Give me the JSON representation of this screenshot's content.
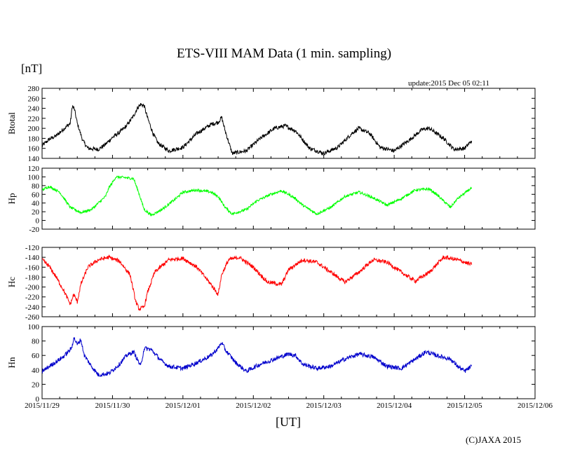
{
  "page": {
    "title": "ETS-VIII MAM Data (1 min. sampling)",
    "unit_label": "[nT]",
    "update_text": "update:2015 Dec 05 02:11",
    "xlabel": "[UT]",
    "copyright": "(C)JAXA 2015"
  },
  "chart_data": [
    {
      "type": "line",
      "ylabel": "Btotal",
      "ylim": [
        140,
        280
      ],
      "yticks": [
        140,
        160,
        180,
        200,
        220,
        240,
        260,
        280
      ],
      "xlim": [
        0,
        7
      ],
      "xticks": [
        "2015/11/29",
        "2015/11/30",
        "2015/12/01",
        "2015/12/02",
        "2015/12/03",
        "2015/12/04",
        "2015/12/05",
        "2015/12/06"
      ],
      "show_xtick_labels": false,
      "series": [
        {
          "color": "#000000",
          "noise": 4,
          "x": [
            0,
            0.1,
            0.2,
            0.3,
            0.4,
            0.43,
            0.46,
            0.5,
            0.58,
            0.65,
            0.8,
            0.9,
            1.0,
            1.1,
            1.2,
            1.3,
            1.35,
            1.4,
            1.45,
            1.5,
            1.58,
            1.65,
            1.8,
            2.0,
            2.2,
            2.4,
            2.5,
            2.55,
            2.6,
            2.7,
            2.9,
            3.1,
            3.3,
            3.45,
            3.6,
            3.8,
            4.0,
            4.2,
            4.4,
            4.5,
            4.65,
            4.8,
            5.0,
            5.2,
            5.4,
            5.5,
            5.7,
            5.85,
            6.0,
            6.1
          ],
          "y": [
            165,
            178,
            185,
            198,
            210,
            245,
            238,
            210,
            175,
            160,
            158,
            168,
            182,
            192,
            205,
            225,
            240,
            248,
            245,
            220,
            188,
            170,
            155,
            162,
            190,
            208,
            212,
            222,
            195,
            150,
            155,
            180,
            200,
            205,
            195,
            160,
            150,
            162,
            190,
            200,
            190,
            162,
            155,
            175,
            198,
            200,
            180,
            158,
            160,
            175
          ]
        }
      ]
    },
    {
      "type": "line",
      "ylabel": "Hp",
      "ylim": [
        -20,
        120
      ],
      "yticks": [
        -20,
        0,
        20,
        40,
        60,
        80,
        100,
        120
      ],
      "xlim": [
        0,
        7
      ],
      "xticks": [
        "2015/11/29",
        "2015/11/30",
        "2015/12/01",
        "2015/12/02",
        "2015/12/03",
        "2015/12/04",
        "2015/12/05",
        "2015/12/06"
      ],
      "show_xtick_labels": false,
      "series": [
        {
          "color": "#00ff00",
          "noise": 3,
          "x": [
            0,
            0.1,
            0.25,
            0.4,
            0.55,
            0.7,
            0.9,
            0.95,
            1.05,
            1.2,
            1.3,
            1.38,
            1.45,
            1.55,
            1.7,
            1.9,
            2.0,
            2.2,
            2.4,
            2.5,
            2.6,
            2.7,
            2.9,
            3.05,
            3.25,
            3.4,
            3.5,
            3.6,
            3.7,
            3.9,
            4.1,
            4.3,
            4.5,
            4.7,
            4.9,
            5.1,
            5.3,
            5.5,
            5.6,
            5.7,
            5.8,
            5.9,
            6.1
          ],
          "y": [
            70,
            78,
            65,
            30,
            18,
            25,
            55,
            75,
            100,
            98,
            96,
            60,
            25,
            12,
            25,
            50,
            65,
            70,
            65,
            55,
            30,
            15,
            25,
            45,
            60,
            68,
            60,
            50,
            35,
            15,
            30,
            55,
            65,
            52,
            35,
            50,
            70,
            72,
            60,
            45,
            30,
            50,
            75
          ]
        }
      ]
    },
    {
      "type": "line",
      "ylabel": "Hc",
      "ylim": [
        -260,
        -120
      ],
      "yticks": [
        -260,
        -240,
        -220,
        -200,
        -180,
        -160,
        -140,
        -120
      ],
      "xlim": [
        0,
        7
      ],
      "xticks": [
        "2015/11/29",
        "2015/11/30",
        "2015/12/01",
        "2015/12/02",
        "2015/12/03",
        "2015/12/04",
        "2015/12/05",
        "2015/12/06"
      ],
      "show_xtick_labels": false,
      "series": [
        {
          "color": "#ff0000",
          "noise": 4,
          "x": [
            0,
            0.1,
            0.2,
            0.3,
            0.4,
            0.45,
            0.5,
            0.55,
            0.65,
            0.8,
            0.95,
            1.1,
            1.25,
            1.33,
            1.38,
            1.45,
            1.5,
            1.6,
            1.8,
            2.0,
            2.2,
            2.4,
            2.5,
            2.55,
            2.65,
            2.8,
            3.0,
            3.2,
            3.4,
            3.5,
            3.7,
            3.9,
            4.1,
            4.3,
            4.5,
            4.7,
            4.9,
            5.1,
            5.3,
            5.5,
            5.7,
            5.9,
            6.1
          ],
          "y": [
            -145,
            -158,
            -180,
            -205,
            -235,
            -215,
            -230,
            -195,
            -160,
            -145,
            -140,
            -148,
            -175,
            -230,
            -245,
            -240,
            -210,
            -170,
            -145,
            -142,
            -160,
            -195,
            -215,
            -175,
            -145,
            -140,
            -160,
            -190,
            -195,
            -165,
            -145,
            -150,
            -170,
            -190,
            -170,
            -145,
            -150,
            -170,
            -188,
            -170,
            -140,
            -145,
            -155
          ]
        }
      ]
    },
    {
      "type": "line",
      "ylabel": "Hn",
      "ylim": [
        0,
        100
      ],
      "yticks": [
        0,
        20,
        40,
        60,
        80,
        100
      ],
      "xlim": [
        0,
        7
      ],
      "xticks": [
        "2015/11/29",
        "2015/11/30",
        "2015/12/01",
        "2015/12/02",
        "2015/12/03",
        "2015/12/04",
        "2015/12/05",
        "2015/12/06"
      ],
      "show_xtick_labels": true,
      "series": [
        {
          "color": "#0000cc",
          "noise": 3,
          "x": [
            0,
            0.15,
            0.3,
            0.42,
            0.45,
            0.5,
            0.55,
            0.6,
            0.7,
            0.8,
            0.95,
            1.1,
            1.2,
            1.3,
            1.35,
            1.4,
            1.45,
            1.55,
            1.7,
            1.8,
            2.0,
            2.2,
            2.4,
            2.5,
            2.55,
            2.6,
            2.75,
            2.9,
            3.1,
            3.3,
            3.5,
            3.6,
            3.7,
            3.9,
            4.1,
            4.3,
            4.5,
            4.7,
            4.9,
            5.1,
            5.3,
            5.45,
            5.6,
            5.8,
            5.9,
            6.0,
            6.1
          ],
          "y": [
            38,
            48,
            58,
            70,
            85,
            75,
            82,
            60,
            45,
            33,
            35,
            48,
            60,
            65,
            55,
            45,
            70,
            68,
            52,
            45,
            42,
            50,
            60,
            70,
            78,
            68,
            50,
            38,
            48,
            55,
            62,
            60,
            48,
            42,
            45,
            55,
            62,
            58,
            45,
            42,
            55,
            65,
            60,
            55,
            45,
            38,
            45
          ]
        }
      ]
    }
  ]
}
